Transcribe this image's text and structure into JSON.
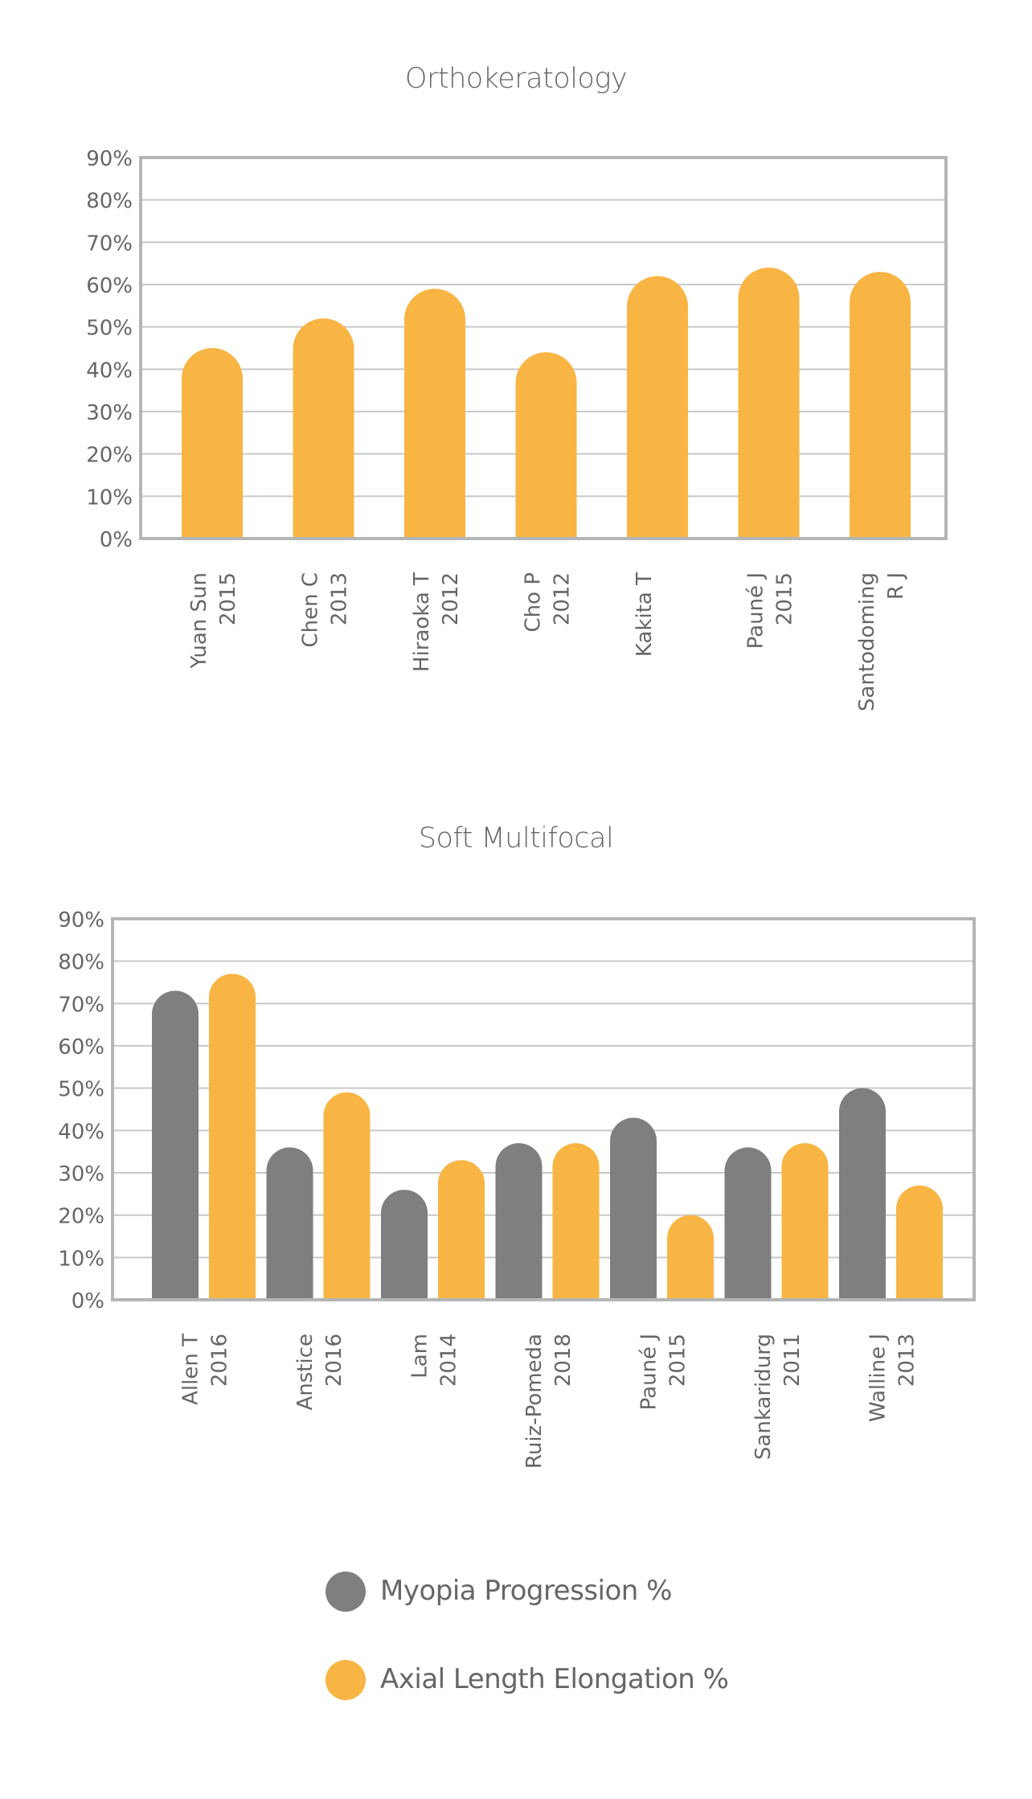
{
  "colors": {
    "myopia": "#7f7f7f",
    "axial": "#f8b544",
    "frame": "#b3b6b4",
    "grid": "#c7c9c7",
    "text": "#666666"
  },
  "chart_data": [
    {
      "type": "bar",
      "title": "Orthokeratology",
      "categories": [
        [
          "Yuan Sun",
          "2015"
        ],
        [
          "Chen C",
          "2013"
        ],
        [
          "Hiraoka T",
          "2012"
        ],
        [
          "Cho P",
          "2012"
        ],
        [
          "Kakita T",
          ""
        ],
        [
          "Pauné J",
          "2015"
        ],
        [
          "Santodoming",
          "R J"
        ]
      ],
      "series": [
        {
          "name": "Axial Length Elongation %",
          "color": "#f8b544",
          "values": [
            45,
            52,
            59,
            44,
            62,
            64,
            63
          ]
        }
      ],
      "ylim": [
        0,
        90
      ],
      "yticks": [
        "0%",
        "10%",
        "20%",
        "30%",
        "40%",
        "50%",
        "60%",
        "70%",
        "80%",
        "90%"
      ],
      "grid": true
    },
    {
      "type": "bar",
      "title": "Soft Multifocal",
      "categories": [
        [
          "Allen T",
          "2016"
        ],
        [
          "Anstice",
          "2016"
        ],
        [
          "Lam",
          "2014"
        ],
        [
          "Ruiz-Pomeda",
          "2018"
        ],
        [
          "Pauné J",
          "2015"
        ],
        [
          "Sankaridurg",
          "2011"
        ],
        [
          "Walline J",
          "2013"
        ]
      ],
      "series": [
        {
          "name": "Myopia Progression %",
          "color": "#7f7f7f",
          "values": [
            73,
            36,
            26,
            37,
            43,
            36,
            50
          ]
        },
        {
          "name": "Axial Length Elongation %",
          "color": "#f8b544",
          "values": [
            77,
            49,
            33,
            37,
            20,
            37,
            27
          ]
        }
      ],
      "ylim": [
        0,
        90
      ],
      "yticks": [
        "0%",
        "10%",
        "20%",
        "30%",
        "40%",
        "50%",
        "60%",
        "70%",
        "80%",
        "90%"
      ],
      "grid": true
    }
  ],
  "legend": {
    "items": [
      {
        "label": "Myopia Progression %",
        "color": "#7f7f7f"
      },
      {
        "label": "Axial Length Elongation %",
        "color": "#f8b544"
      }
    ]
  }
}
